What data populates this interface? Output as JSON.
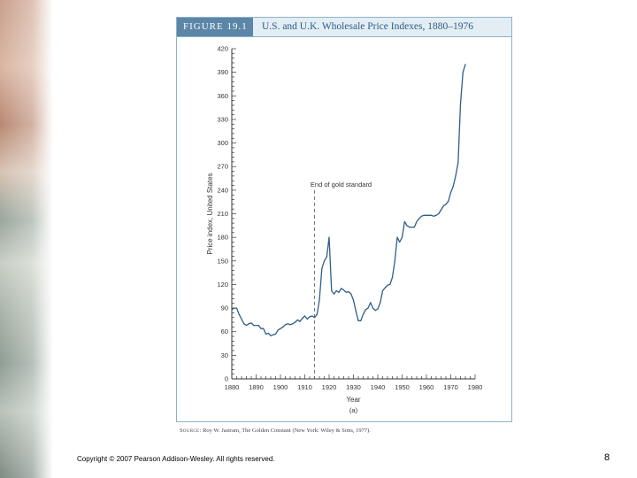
{
  "slide": {
    "copyright": "Copyright © 2007 Pearson Addison-Wesley. All rights reserved.",
    "page_number": "8"
  },
  "figure": {
    "label": "FIGURE 19.1",
    "title": "U.S. and U.K. Wholesale Price Indexes, 1880–1976",
    "source_label": "Source:",
    "source_text": "Roy W. Jastram, The Golden Constant (New York: Wiley & Sons, 1977)."
  },
  "chart_data": {
    "type": "line",
    "title": "U.S. and U.K. Wholesale Price Indexes, 1880–1976",
    "xlabel": "Year",
    "ylabel": "Price index, United States",
    "panel_label": "(a)",
    "xlim": [
      1880,
      1980
    ],
    "ylim": [
      0,
      420
    ],
    "x_ticks": [
      1880,
      1890,
      1900,
      1910,
      1920,
      1930,
      1940,
      1950,
      1960,
      1970,
      1980
    ],
    "y_ticks": [
      0,
      30,
      60,
      90,
      120,
      150,
      180,
      210,
      240,
      270,
      300,
      330,
      360,
      390,
      420
    ],
    "grid": false,
    "annotations": [
      {
        "text": "End of gold standard",
        "x": 1914,
        "style": "dashed-vertical-line"
      }
    ],
    "series": [
      {
        "name": "United States",
        "x": [
          1880,
          1881,
          1882,
          1883,
          1884,
          1885,
          1886,
          1887,
          1888,
          1889,
          1890,
          1891,
          1892,
          1893,
          1894,
          1895,
          1896,
          1897,
          1898,
          1899,
          1900,
          1901,
          1902,
          1903,
          1904,
          1905,
          1906,
          1907,
          1908,
          1909,
          1910,
          1911,
          1912,
          1913,
          1914,
          1915,
          1916,
          1917,
          1918,
          1919,
          1920,
          1921,
          1922,
          1923,
          1924,
          1925,
          1926,
          1927,
          1928,
          1929,
          1930,
          1931,
          1932,
          1933,
          1934,
          1935,
          1936,
          1937,
          1938,
          1939,
          1940,
          1941,
          1942,
          1943,
          1944,
          1945,
          1946,
          1947,
          1948,
          1949,
          1950,
          1951,
          1952,
          1953,
          1954,
          1955,
          1956,
          1957,
          1958,
          1959,
          1960,
          1961,
          1962,
          1963,
          1964,
          1965,
          1966,
          1967,
          1968,
          1969,
          1970,
          1971,
          1972,
          1973,
          1974,
          1975,
          1976
        ],
        "values": [
          88,
          90,
          90,
          82,
          76,
          70,
          68,
          70,
          71,
          68,
          68,
          68,
          64,
          64,
          57,
          58,
          55,
          56,
          57,
          62,
          64,
          66,
          69,
          70,
          69,
          70,
          72,
          75,
          73,
          77,
          80,
          76,
          79,
          80,
          78,
          82,
          100,
          140,
          150,
          155,
          180,
          112,
          108,
          112,
          110,
          115,
          113,
          110,
          111,
          108,
          100,
          86,
          74,
          74,
          82,
          88,
          90,
          97,
          90,
          87,
          89,
          97,
          112,
          116,
          119,
          120,
          129,
          150,
          180,
          174,
          180,
          200,
          195,
          193,
          193,
          193,
          200,
          204,
          207,
          208,
          208,
          208,
          208,
          207,
          208,
          210,
          215,
          220,
          222,
          226,
          237,
          245,
          258,
          275,
          350,
          390,
          400
        ]
      }
    ]
  }
}
